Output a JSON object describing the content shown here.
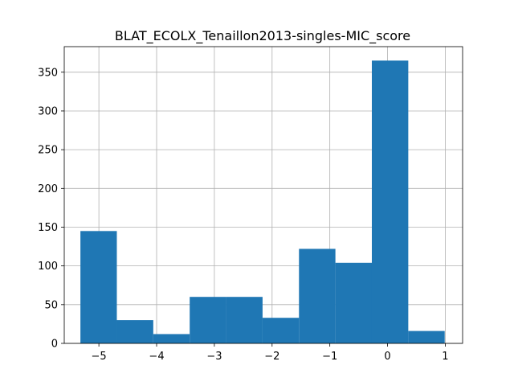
{
  "chart_data": {
    "type": "bar",
    "title": "BLAT_ECOLX_Tenaillon2013-singles-MIC_score",
    "xlabel": "",
    "ylabel": "",
    "bin_edges": [
      -5.32,
      -4.689,
      -4.058,
      -3.427,
      -2.796,
      -2.165,
      -1.534,
      -0.903,
      -0.272,
      0.359,
      0.99
    ],
    "values": [
      145,
      30,
      12,
      60,
      60,
      33,
      122,
      104,
      365,
      16
    ],
    "xlim": [
      -5.6,
      1.3
    ],
    "ylim": [
      0,
      383
    ],
    "xticks": [
      -5,
      -4,
      -3,
      -2,
      -1,
      0,
      1
    ],
    "xtick_labels": [
      "−5",
      "−4",
      "−3",
      "−2",
      "−1",
      "0",
      "1"
    ],
    "yticks": [
      0,
      50,
      100,
      150,
      200,
      250,
      300,
      350
    ],
    "ytick_labels": [
      "0",
      "50",
      "100",
      "150",
      "200",
      "250",
      "300",
      "350"
    ],
    "grid": true,
    "bar_color": "#1f77b4"
  }
}
